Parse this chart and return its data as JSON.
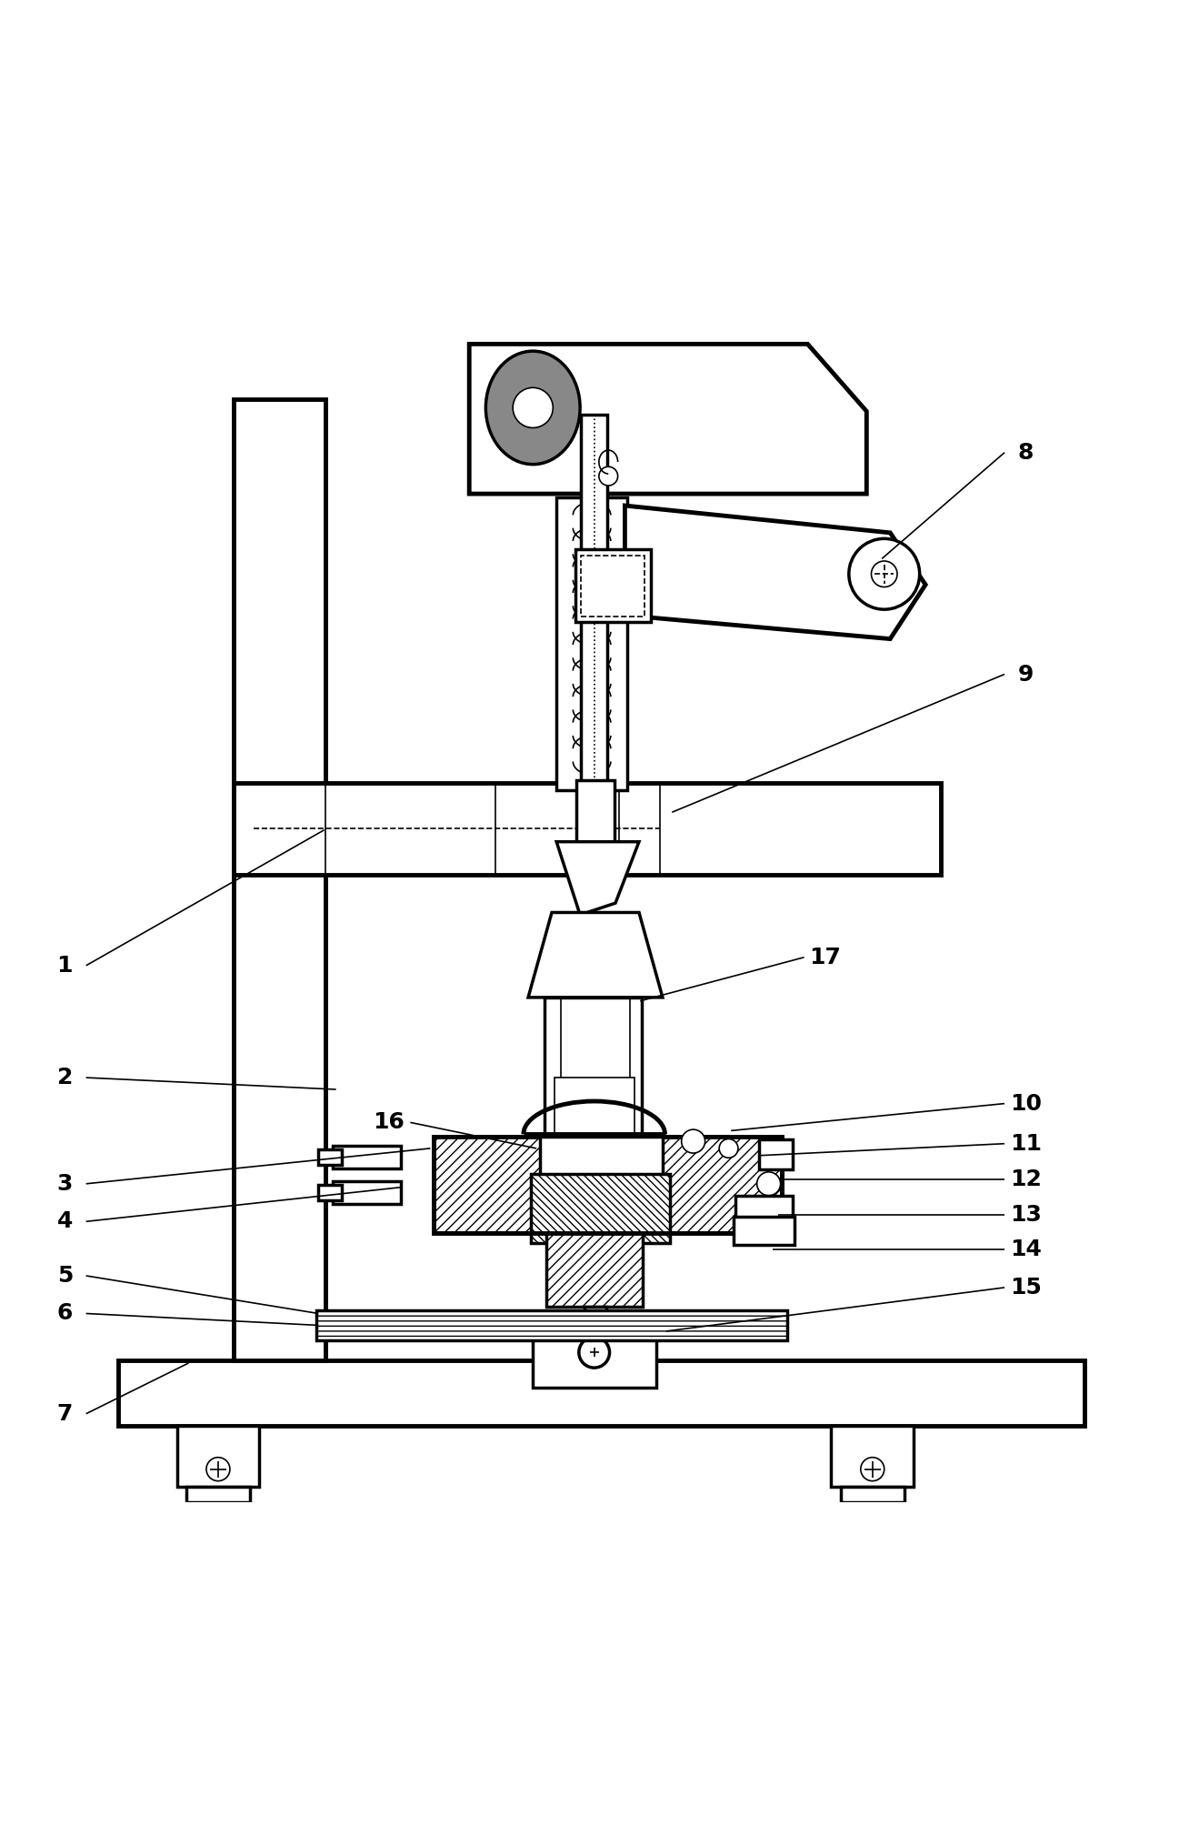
{
  "bg_color": "#ffffff",
  "line_color": "#000000",
  "fig_width": 12.97,
  "fig_height": 20.07,
  "label_fontsize": 18,
  "label_fontweight": "bold",
  "annotations": {
    "1": [
      0.055,
      0.545,
      0.275,
      0.43
    ],
    "2": [
      0.055,
      0.64,
      0.285,
      0.65
    ],
    "3": [
      0.055,
      0.73,
      0.365,
      0.7
    ],
    "4": [
      0.055,
      0.762,
      0.34,
      0.733
    ],
    "5": [
      0.055,
      0.808,
      0.27,
      0.84
    ],
    "6": [
      0.055,
      0.84,
      0.27,
      0.85
    ],
    "7": [
      0.055,
      0.925,
      0.16,
      0.882
    ],
    "8": [
      0.87,
      0.11,
      0.748,
      0.2
    ],
    "9": [
      0.87,
      0.298,
      0.57,
      0.415
    ],
    "10": [
      0.87,
      0.662,
      0.62,
      0.685
    ],
    "11": [
      0.87,
      0.696,
      0.645,
      0.706
    ],
    "12": [
      0.87,
      0.726,
      0.665,
      0.726
    ],
    "13": [
      0.87,
      0.756,
      0.66,
      0.756
    ],
    "14": [
      0.87,
      0.786,
      0.655,
      0.786
    ],
    "15": [
      0.87,
      0.818,
      0.565,
      0.855
    ],
    "16": [
      0.33,
      0.678,
      0.455,
      0.7
    ],
    "17": [
      0.7,
      0.538,
      0.543,
      0.575
    ]
  }
}
